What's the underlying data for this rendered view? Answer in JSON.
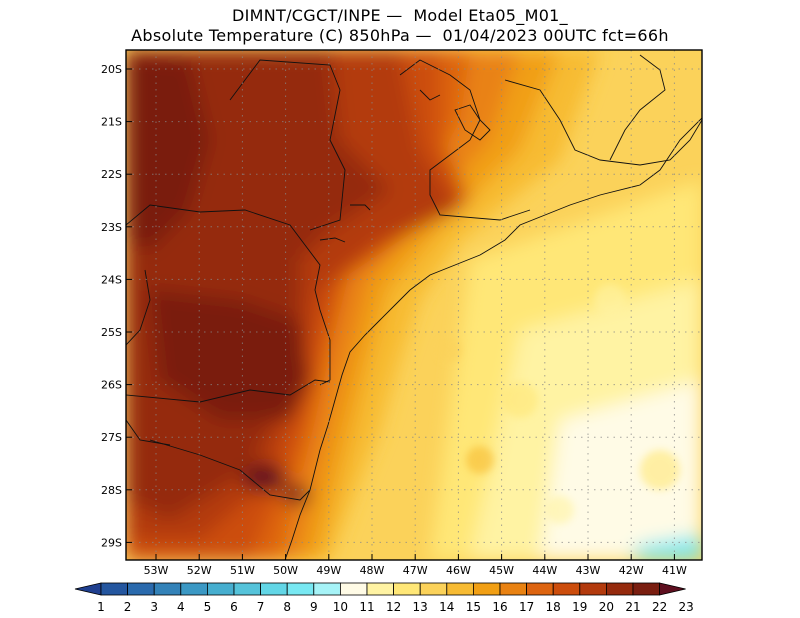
{
  "header": {
    "line1": "DIMNT/CGCT/INPE —  Model Eta05_M01_",
    "line2": "Absolute Temperature (C) 850hPa —  01/04/2023 00UTC fct=66h"
  },
  "map": {
    "lat_labels": [
      "20S",
      "21S",
      "22S",
      "23S",
      "24S",
      "25S",
      "26S",
      "27S",
      "28S",
      "29S"
    ],
    "lon_labels": [
      "53W",
      "52W",
      "51W",
      "50W",
      "49W",
      "48W",
      "47W",
      "46W",
      "45W",
      "44W",
      "43W",
      "42W",
      "41W"
    ]
  },
  "colorbar": {
    "labels": [
      "1",
      "2",
      "3",
      "4",
      "5",
      "6",
      "7",
      "8",
      "9",
      "10",
      "11",
      "12",
      "13",
      "14",
      "15",
      "16",
      "17",
      "18",
      "19",
      "20",
      "21",
      "22",
      "23"
    ],
    "colors": [
      "#1f3f8f",
      "#24569f",
      "#2a6aad",
      "#3382b8",
      "#3b98c4",
      "#46aecf",
      "#55c3da",
      "#62d6e6",
      "#78e8f2",
      "#a6f3f7",
      "#fffbe6",
      "#fff3a3",
      "#ffe777",
      "#fbd25a",
      "#f7bb33",
      "#f19f14",
      "#e98212",
      "#dd6410",
      "#cc4d0c",
      "#b33a0d",
      "#952a0d",
      "#7a1e10",
      "#5e0f1f"
    ]
  }
}
